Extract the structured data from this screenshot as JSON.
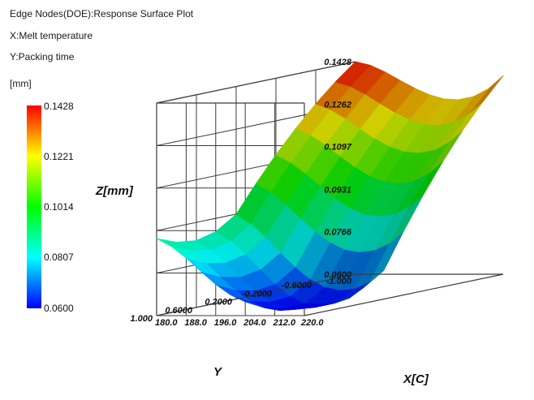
{
  "header": {
    "line1": "Edge Nodes(DOE):Response Surface Plot",
    "line2": "X:Melt temperature",
    "line3": "Y:Packing time"
  },
  "colorbar": {
    "unit": "[mm]",
    "labels": [
      "0.1428",
      "0.1221",
      "0.1014",
      "0.0807",
      "0.0600"
    ]
  },
  "chart_data": {
    "type": "surface",
    "title": "Edge Nodes(DOE):Response Surface Plot",
    "xlabel": "X[C]",
    "ylabel": "Y",
    "zlabel": "Z[mm]",
    "x_ticks": [
      "180.0",
      "188.0",
      "196.0",
      "204.0",
      "212.0",
      "220.0"
    ],
    "y_ticks": [
      "-1.000",
      "-0.6000",
      "-0.2000",
      "0.2000",
      "0.6000",
      "1.000"
    ],
    "z_ticks": [
      "0.1428",
      "0.1262",
      "0.1097",
      "0.0931",
      "0.0766",
      "0.0600"
    ],
    "xlim": [
      180,
      220
    ],
    "ylim": [
      -1,
      1
    ],
    "zlim": [
      0.06,
      0.1428
    ],
    "x": [
      180,
      184,
      188,
      192,
      196,
      200,
      204,
      208,
      212,
      216,
      220
    ],
    "y": [
      -1,
      -0.8,
      -0.6,
      -0.4,
      -0.2,
      0,
      0.2,
      0.4,
      0.6,
      0.8,
      1
    ],
    "z": [
      [
        0.1428,
        0.1414,
        0.1388,
        0.1356,
        0.1325,
        0.1299,
        0.1283,
        0.128,
        0.1292,
        0.1322,
        0.1373
      ],
      [
        0.1366,
        0.1348,
        0.1318,
        0.1282,
        0.1248,
        0.122,
        0.1202,
        0.1198,
        0.121,
        0.124,
        0.129
      ],
      [
        0.1296,
        0.1274,
        0.124,
        0.12,
        0.1162,
        0.1131,
        0.1111,
        0.1106,
        0.1117,
        0.1147,
        0.1197
      ],
      [
        0.1217,
        0.1192,
        0.1154,
        0.1109,
        0.1067,
        0.1032,
        0.101,
        0.1003,
        0.1013,
        0.1042,
        0.1092
      ],
      [
        0.113,
        0.1101,
        0.1058,
        0.1009,
        0.0962,
        0.0924,
        0.0899,
        0.0891,
        0.0899,
        0.0927,
        0.0976
      ],
      [
        0.1034,
        0.1002,
        0.0955,
        0.09,
        0.0849,
        0.0806,
        0.0778,
        0.0768,
        0.0775,
        0.0801,
        0.0849
      ],
      [
        0.093,
        0.0894,
        0.0842,
        0.0783,
        0.0726,
        0.0679,
        0.0648,
        0.0636,
        0.0641,
        0.0666,
        0.0712
      ],
      [
        0.088,
        0.0844,
        0.0792,
        0.0733,
        0.0676,
        0.0629,
        0.06,
        0.06,
        0.06,
        0.062,
        0.0662
      ],
      [
        0.086,
        0.0826,
        0.0776,
        0.072,
        0.0666,
        0.0622,
        0.06,
        0.06,
        0.06,
        0.0612,
        0.065
      ],
      [
        0.087,
        0.0838,
        0.079,
        0.0736,
        0.0684,
        0.0642,
        0.0614,
        0.0604,
        0.0608,
        0.0628,
        0.0664
      ],
      [
        0.09,
        0.087,
        0.0824,
        0.0772,
        0.0722,
        0.0681,
        0.0654,
        0.0644,
        0.0647,
        0.0666,
        0.07
      ]
    ]
  }
}
